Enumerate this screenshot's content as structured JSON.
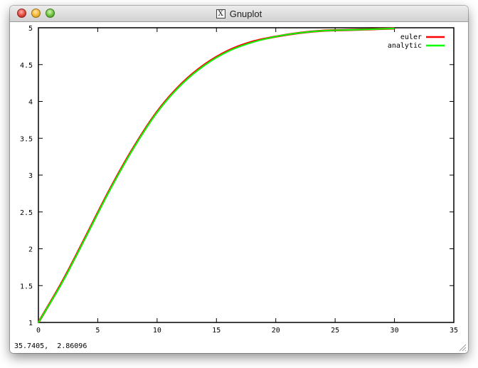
{
  "window": {
    "title": "Gnuplot",
    "x_icon_glyph": "X",
    "status_text": "35.7405,  2.86096"
  },
  "colors": {
    "euler": "#ff0000",
    "analytic": "#00ff00"
  },
  "chart_data": {
    "type": "line",
    "title": "",
    "xlabel": "",
    "ylabel": "",
    "xlim": [
      0,
      35
    ],
    "ylim": [
      1,
      5
    ],
    "xticks": [
      0,
      5,
      10,
      15,
      20,
      25,
      30,
      35
    ],
    "yticks": [
      1,
      1.5,
      2,
      2.5,
      3,
      3.5,
      4,
      4.5,
      5
    ],
    "ytick_labels": [
      "1",
      "1.5",
      "2",
      "2.5",
      "3",
      "3.5",
      "4",
      "4.5",
      "5"
    ],
    "grid": false,
    "legend_position": "top-right",
    "series": [
      {
        "name": "euler",
        "x": [
          0,
          2,
          4,
          6,
          8,
          10,
          12,
          14,
          16,
          18,
          20,
          22,
          24,
          26,
          28,
          30
        ],
        "y": [
          1.0,
          1.55,
          2.17,
          2.8,
          3.37,
          3.86,
          4.23,
          4.5,
          4.69,
          4.81,
          4.88,
          4.93,
          4.96,
          4.97,
          4.98,
          4.99
        ]
      },
      {
        "name": "analytic",
        "x": [
          0,
          2,
          4,
          6,
          8,
          10,
          12,
          14,
          16,
          18,
          20,
          22,
          24,
          26,
          28,
          30
        ],
        "y": [
          1.0,
          1.54,
          2.16,
          2.79,
          3.36,
          3.85,
          4.22,
          4.49,
          4.68,
          4.8,
          4.88,
          4.93,
          4.96,
          4.97,
          4.98,
          4.99
        ]
      }
    ]
  }
}
